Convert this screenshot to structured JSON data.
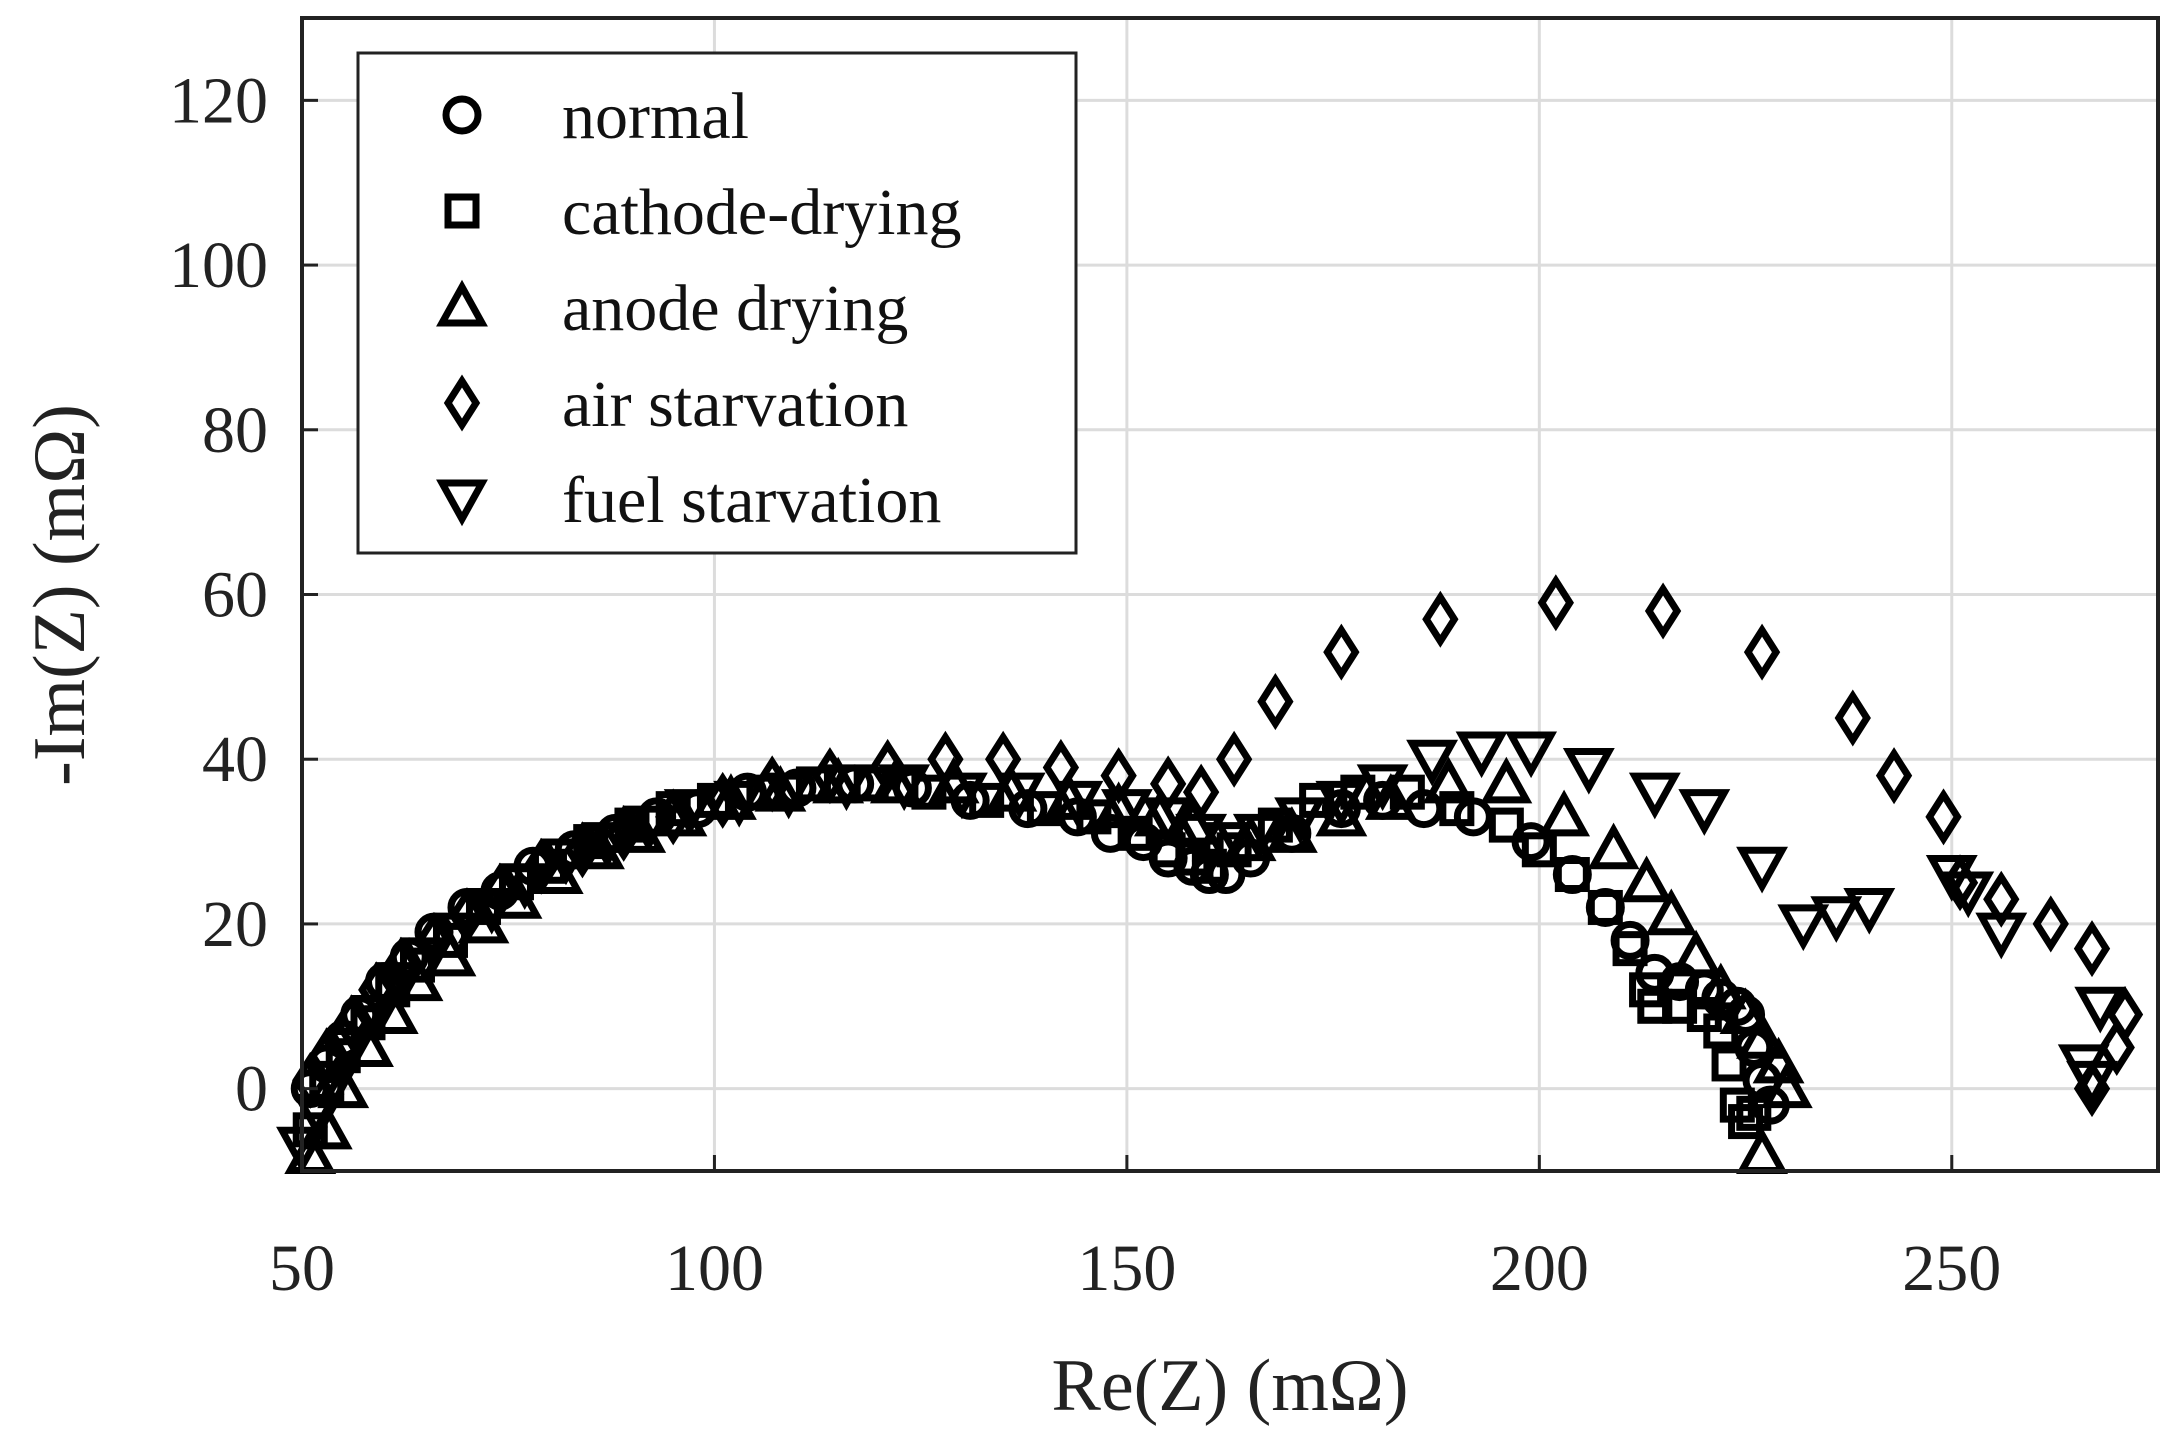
{
  "chart_data": {
    "type": "scatter",
    "title": "",
    "xlabel": "Re(Z) (mΩ)",
    "ylabel": "-Im(Z) (mΩ)",
    "xlim": [
      50,
      275
    ],
    "ylim": [
      -10,
      130
    ],
    "xticks": [
      50,
      100,
      150,
      200,
      250
    ],
    "yticks": [
      0,
      20,
      40,
      60,
      80,
      100,
      120
    ],
    "grid": true,
    "legend_position": "top-left",
    "colors": {
      "marker": "#000000",
      "grid": "#dcdcdc",
      "axis": "#222222"
    },
    "series": [
      {
        "name": "normal",
        "marker": "circle",
        "x": [
          51,
          53,
          55,
          57,
          60,
          63,
          66,
          70,
          74,
          78,
          83,
          88,
          93,
          98,
          104,
          110,
          117,
          124,
          131,
          138,
          144,
          148,
          152,
          155,
          158,
          160,
          162,
          165,
          170,
          176,
          181,
          186,
          192,
          199,
          204,
          208,
          211,
          214,
          217,
          220,
          222,
          224,
          225,
          226,
          227,
          228
        ],
        "y": [
          0,
          3,
          6,
          9,
          13,
          16,
          19,
          22,
          24,
          27,
          29,
          31,
          33,
          34,
          36,
          36.5,
          37,
          36.5,
          35,
          34,
          33,
          31,
          30,
          28,
          27,
          26,
          26,
          28,
          31,
          34,
          35,
          34,
          33,
          30,
          26,
          22,
          18,
          14,
          13,
          12,
          11,
          10,
          9,
          5,
          1,
          -2
        ]
      },
      {
        "name": "cathode-drying",
        "marker": "square",
        "x": [
          51,
          53,
          55,
          58,
          61,
          64,
          68,
          72,
          76,
          80,
          85,
          90,
          95,
          100,
          106,
          112,
          119,
          126,
          133,
          140,
          146,
          151,
          155,
          158,
          160,
          163,
          168,
          173,
          178,
          184,
          190,
          196,
          200,
          204,
          208,
          211,
          213,
          214,
          217,
          220,
          222,
          223,
          224,
          225,
          226
        ],
        "y": [
          -5,
          0,
          4,
          8,
          12,
          15,
          18,
          22,
          25,
          27,
          30,
          32,
          34,
          35,
          36,
          37,
          37,
          36,
          35,
          34,
          33,
          31,
          29,
          28,
          27,
          29,
          32,
          35,
          36,
          36,
          34,
          32,
          29,
          26,
          22,
          17,
          12,
          10,
          10,
          9,
          7,
          3,
          -2,
          -4,
          -3
        ]
      },
      {
        "name": "anode drying",
        "marker": "triangle-up",
        "x": [
          51,
          53,
          55,
          58,
          61,
          64,
          68,
          72,
          76,
          81,
          86,
          91,
          96,
          102,
          108,
          115,
          122,
          129,
          136,
          143,
          149,
          154,
          158,
          161,
          165,
          170,
          176,
          182,
          189,
          196,
          203,
          209,
          213,
          216,
          219,
          222,
          225,
          227,
          229,
          230,
          227
        ],
        "y": [
          -8,
          -5,
          0,
          5,
          9,
          13,
          16,
          20,
          23,
          26,
          29,
          31,
          33,
          35,
          36,
          37,
          37,
          37,
          36,
          35,
          34,
          33,
          32,
          30,
          30,
          31,
          33,
          35,
          37,
          37,
          33,
          29,
          25,
          21,
          16,
          12,
          9,
          6,
          3,
          0,
          -8
        ]
      },
      {
        "name": "air starvation",
        "marker": "diamond",
        "x": [
          51,
          53,
          56,
          59,
          62,
          66,
          70,
          74,
          79,
          84,
          89,
          95,
          101,
          107,
          114,
          121,
          128,
          135,
          142,
          149,
          155,
          159,
          163,
          168,
          176,
          188,
          202,
          215,
          227,
          238,
          243,
          249,
          251,
          256,
          262,
          267,
          271,
          270,
          267
        ],
        "y": [
          1,
          4,
          8,
          12,
          15,
          18,
          21,
          24,
          27,
          29,
          31,
          33,
          35,
          37,
          38,
          39,
          40,
          40,
          39,
          38,
          37,
          36,
          40,
          47,
          53,
          57,
          59,
          58,
          53,
          45,
          38,
          33,
          25,
          23,
          20,
          17,
          9,
          5,
          0
        ]
      },
      {
        "name": "fuel starvation",
        "marker": "triangle-down",
        "x": [
          50,
          52,
          54,
          56,
          59,
          62,
          65,
          69,
          73,
          77,
          82,
          87,
          92,
          97,
          103,
          109,
          116,
          123,
          130,
          137,
          144,
          150,
          155,
          159,
          162,
          166,
          171,
          176,
          181,
          187,
          193,
          199,
          206,
          214,
          220,
          227,
          232,
          236,
          240,
          250,
          252,
          256,
          266,
          267,
          268
        ],
        "y": [
          -7,
          -3,
          1,
          5,
          9,
          13,
          16,
          19,
          22,
          25,
          28,
          30,
          32,
          34,
          35,
          36,
          37,
          37,
          36,
          36,
          35,
          34,
          33,
          31,
          30,
          31,
          33,
          35,
          37,
          40,
          41,
          41,
          39,
          36,
          34,
          27,
          20,
          21,
          22,
          26,
          24,
          19,
          3,
          1,
          10
        ]
      }
    ]
  }
}
